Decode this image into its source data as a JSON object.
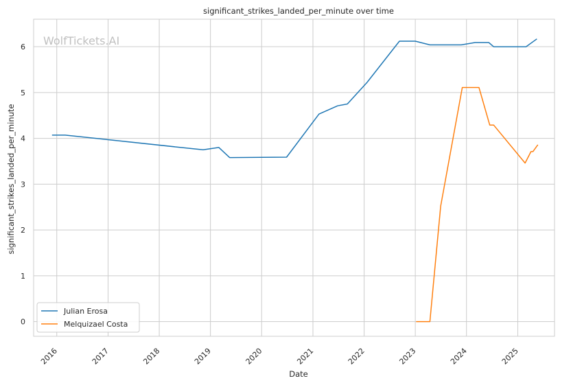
{
  "chart_data": {
    "type": "line",
    "title": "significant_strikes_landed_per_minute over time",
    "xlabel": "Date",
    "ylabel": "significant_strikes_landed_per_minute",
    "watermark": "WolfTickets.AI",
    "x_ticks": [
      "2016",
      "2017",
      "2018",
      "2019",
      "2020",
      "2021",
      "2022",
      "2023",
      "2024",
      "2025"
    ],
    "y_ticks": [
      "0",
      "1",
      "2",
      "3",
      "4",
      "5",
      "6"
    ],
    "xlim": [
      "2015-07-20",
      "2025-09-20"
    ],
    "ylim": [
      -0.32,
      6.6
    ],
    "grid": true,
    "legend_position": "lower-left",
    "series": [
      {
        "name": "Julian Erosa",
        "color": "#1f77b4",
        "points": [
          [
            "2015-11-28",
            4.07
          ],
          [
            "2016-03-01",
            4.07
          ],
          [
            "2018-11-10",
            3.75
          ],
          [
            "2019-03-02",
            3.8
          ],
          [
            "2019-05-18",
            3.58
          ],
          [
            "2020-06-27",
            3.59
          ],
          [
            "2021-02-13",
            4.53
          ],
          [
            "2021-06-26",
            4.71
          ],
          [
            "2021-09-04",
            4.75
          ],
          [
            "2022-01-22",
            5.22
          ],
          [
            "2022-09-10",
            6.12
          ],
          [
            "2023-01-01",
            6.12
          ],
          [
            "2023-04-15",
            6.04
          ],
          [
            "2023-11-25",
            6.04
          ],
          [
            "2024-03-02",
            6.09
          ],
          [
            "2024-06-08",
            6.09
          ],
          [
            "2024-07-13",
            6.0
          ],
          [
            "2025-03-01",
            6.0
          ],
          [
            "2025-05-17",
            6.17
          ]
        ]
      },
      {
        "name": "Melquizael Costa",
        "color": "#ff7f0e",
        "points": [
          [
            "2023-01-07",
            0.0
          ],
          [
            "2023-04-15",
            0.0
          ],
          [
            "2023-07-01",
            2.52
          ],
          [
            "2023-12-02",
            5.11
          ],
          [
            "2024-03-30",
            5.11
          ],
          [
            "2024-06-15",
            4.29
          ],
          [
            "2024-07-13",
            4.29
          ],
          [
            "2025-02-22",
            3.46
          ],
          [
            "2025-04-05",
            3.71
          ],
          [
            "2025-04-19",
            3.71
          ],
          [
            "2025-05-24",
            3.86
          ]
        ]
      }
    ]
  }
}
